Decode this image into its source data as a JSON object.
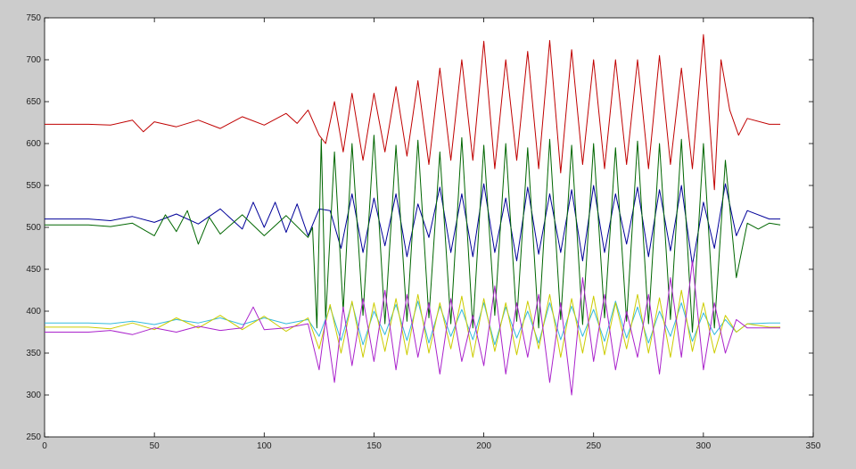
{
  "chart_data": {
    "type": "line",
    "title": "",
    "xlabel": "",
    "ylabel": "",
    "xlim": [
      0,
      350
    ],
    "ylim": [
      250,
      750
    ],
    "grid": false,
    "x_ticks": [
      0,
      50,
      100,
      150,
      200,
      250,
      300,
      350
    ],
    "y_ticks": [
      250,
      300,
      350,
      400,
      450,
      500,
      550,
      600,
      650,
      700,
      750
    ],
    "x_tick_labels": [
      "0",
      "50",
      "100",
      "150",
      "200",
      "250",
      "300",
      "350"
    ],
    "y_tick_labels": [
      "250",
      "300",
      "350",
      "400",
      "450",
      "500",
      "550",
      "600",
      "650",
      "700",
      "750"
    ],
    "series": [
      {
        "color": "#c00000",
        "x": [
          0,
          20,
          30,
          40,
          45,
          50,
          60,
          70,
          80,
          90,
          100,
          110,
          115,
          120,
          125,
          128,
          132,
          136,
          140,
          145,
          150,
          155,
          160,
          165,
          170,
          175,
          180,
          185,
          190,
          195,
          200,
          205,
          210,
          215,
          220,
          225,
          230,
          235,
          240,
          245,
          250,
          255,
          260,
          265,
          270,
          275,
          280,
          285,
          290,
          295,
          300,
          305,
          308,
          312,
          316,
          320,
          330,
          335
        ],
        "y": [
          623,
          623,
          622,
          628,
          614,
          626,
          620,
          628,
          618,
          632,
          622,
          636,
          624,
          640,
          610,
          600,
          650,
          590,
          660,
          580,
          660,
          590,
          668,
          585,
          675,
          575,
          690,
          580,
          700,
          580,
          722,
          570,
          700,
          580,
          710,
          570,
          723,
          565,
          712,
          575,
          700,
          570,
          700,
          575,
          700,
          570,
          705,
          575,
          690,
          570,
          730,
          545,
          700,
          640,
          610,
          630,
          623,
          623
        ]
      },
      {
        "color": "#000099",
        "x": [
          0,
          20,
          30,
          40,
          50,
          60,
          70,
          80,
          90,
          95,
          100,
          105,
          110,
          115,
          120,
          125,
          130,
          135,
          140,
          145,
          150,
          155,
          160,
          165,
          170,
          175,
          180,
          185,
          190,
          195,
          200,
          205,
          210,
          215,
          220,
          225,
          230,
          235,
          240,
          245,
          250,
          255,
          260,
          265,
          270,
          275,
          280,
          285,
          290,
          295,
          300,
          305,
          310,
          315,
          320,
          330,
          335
        ],
        "y": [
          510,
          510,
          508,
          513,
          506,
          516,
          504,
          522,
          498,
          530,
          500,
          530,
          494,
          528,
          490,
          522,
          520,
          475,
          540,
          470,
          535,
          478,
          540,
          465,
          528,
          488,
          548,
          470,
          540,
          465,
          552,
          470,
          535,
          460,
          548,
          468,
          540,
          470,
          545,
          460,
          550,
          470,
          540,
          480,
          548,
          465,
          545,
          472,
          550,
          455,
          530,
          475,
          552,
          490,
          520,
          510,
          510
        ]
      },
      {
        "color": "#006600",
        "x": [
          0,
          20,
          30,
          40,
          50,
          55,
          60,
          65,
          70,
          75,
          80,
          90,
          100,
          110,
          120,
          122,
          124,
          126,
          128,
          132,
          136,
          140,
          145,
          150,
          155,
          160,
          165,
          170,
          175,
          180,
          185,
          190,
          195,
          200,
          205,
          210,
          215,
          220,
          225,
          230,
          235,
          240,
          245,
          250,
          255,
          260,
          265,
          270,
          275,
          280,
          285,
          290,
          295,
          300,
          305,
          310,
          315,
          320,
          325,
          330,
          335
        ],
        "y": [
          503,
          503,
          501,
          505,
          490,
          515,
          495,
          520,
          480,
          512,
          492,
          515,
          490,
          514,
          488,
          500,
          380,
          605,
          390,
          590,
          400,
          600,
          395,
          610,
          385,
          598,
          388,
          604,
          392,
          590,
          385,
          607,
          380,
          598,
          395,
          600,
          388,
          595,
          380,
          605,
          390,
          598,
          384,
          600,
          392,
          595,
          388,
          603,
          385,
          600,
          390,
          605,
          375,
          600,
          380,
          580,
          440,
          505,
          498,
          505,
          503
        ]
      },
      {
        "color": "#33bbdd",
        "x": [
          0,
          20,
          30,
          40,
          50,
          60,
          70,
          80,
          90,
          100,
          110,
          120,
          125,
          130,
          135,
          140,
          145,
          150,
          155,
          160,
          165,
          170,
          175,
          180,
          185,
          190,
          195,
          200,
          205,
          210,
          215,
          220,
          225,
          230,
          235,
          240,
          245,
          250,
          255,
          260,
          265,
          270,
          275,
          280,
          285,
          290,
          295,
          300,
          305,
          310,
          315,
          320,
          330,
          335
        ],
        "y": [
          386,
          386,
          385,
          388,
          384,
          390,
          386,
          392,
          384,
          392,
          385,
          390,
          370,
          405,
          365,
          410,
          360,
          400,
          372,
          408,
          365,
          412,
          362,
          406,
          370,
          402,
          366,
          410,
          360,
          405,
          368,
          400,
          362,
          410,
          366,
          406,
          370,
          402,
          364,
          412,
          368,
          405,
          362,
          400,
          370,
          410,
          364,
          398,
          372,
          390,
          375,
          385,
          386,
          386
        ]
      },
      {
        "color": "#cccc00",
        "x": [
          0,
          20,
          30,
          40,
          50,
          60,
          70,
          80,
          90,
          100,
          110,
          120,
          125,
          130,
          135,
          140,
          145,
          150,
          155,
          160,
          165,
          170,
          175,
          180,
          185,
          190,
          195,
          200,
          205,
          210,
          215,
          220,
          225,
          230,
          235,
          240,
          245,
          250,
          255,
          260,
          265,
          270,
          275,
          280,
          285,
          290,
          295,
          300,
          305,
          310,
          315,
          320,
          330,
          335
        ],
        "y": [
          381,
          381,
          379,
          386,
          378,
          392,
          380,
          395,
          378,
          394,
          376,
          392,
          355,
          408,
          350,
          412,
          345,
          410,
          352,
          415,
          348,
          420,
          350,
          410,
          355,
          418,
          345,
          415,
          352,
          410,
          348,
          412,
          355,
          420,
          345,
          415,
          350,
          418,
          348,
          410,
          355,
          420,
          350,
          416,
          345,
          425,
          352,
          410,
          350,
          395,
          375,
          385,
          381,
          381
        ]
      },
      {
        "color": "#aa22cc",
        "x": [
          0,
          20,
          30,
          40,
          50,
          60,
          70,
          80,
          90,
          95,
          100,
          110,
          120,
          125,
          128,
          132,
          136,
          140,
          145,
          150,
          155,
          160,
          165,
          170,
          175,
          180,
          185,
          190,
          195,
          200,
          205,
          210,
          215,
          220,
          225,
          230,
          235,
          240,
          245,
          250,
          255,
          260,
          265,
          270,
          275,
          280,
          285,
          290,
          295,
          300,
          305,
          310,
          315,
          320,
          330,
          335
        ],
        "y": [
          375,
          375,
          377,
          372,
          380,
          375,
          382,
          377,
          380,
          405,
          378,
          380,
          385,
          330,
          390,
          315,
          405,
          335,
          415,
          340,
          425,
          330,
          420,
          345,
          410,
          325,
          415,
          340,
          395,
          335,
          430,
          325,
          410,
          345,
          420,
          315,
          410,
          300,
          440,
          340,
          420,
          330,
          400,
          345,
          420,
          325,
          440,
          345,
          460,
          330,
          410,
          350,
          390,
          380,
          380,
          380
        ]
      }
    ]
  }
}
